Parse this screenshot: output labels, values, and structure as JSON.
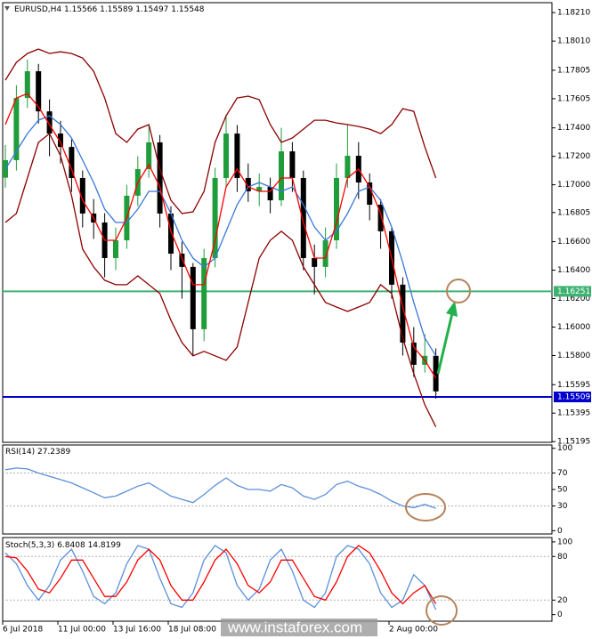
{
  "chart_data": [
    {
      "type": "candlestick",
      "title": "EURUSD,H4",
      "header_values": [
        1.15566,
        1.15589,
        1.15497,
        1.15548
      ],
      "up_color": "#1f9d3a",
      "down_color": "#000000",
      "open": [
        1.1705,
        1.17173,
        1.1761,
        1.17798,
        1.17516,
        1.1736,
        1.17266,
        1.17048,
        1.16798,
        1.16735,
        1.16485,
        1.1661,
        1.16923,
        1.1711,
        1.17298,
        1.16798,
        1.16516,
        1.16423,
        1.15985,
        1.16485,
        1.17048,
        1.1736,
        1.17048,
        1.16954,
        1.16985,
        1.16891,
        1.17235,
        1.17048,
        1.16485,
        1.16423,
        1.1661,
        1.17048,
        1.17204,
        1.17016,
        1.1686,
        1.16673,
        1.16298,
        1.15891,
        1.15735,
        1.15798
      ],
      "high": [
        1.1728,
        1.177,
        1.1788,
        1.1785,
        1.176,
        1.1745,
        1.1732,
        1.171,
        1.169,
        1.168,
        1.167,
        1.17,
        1.172,
        1.1742,
        1.1735,
        1.1685,
        1.166,
        1.1645,
        1.1655,
        1.1712,
        1.1748,
        1.1742,
        1.1715,
        1.1708,
        1.1705,
        1.174,
        1.173,
        1.171,
        1.1658,
        1.167,
        1.1715,
        1.1742,
        1.173,
        1.1708,
        1.169,
        1.167,
        1.1635,
        1.16,
        1.1595,
        1.1585
      ],
      "low": [
        1.1698,
        1.171,
        1.1754,
        1.1743,
        1.172,
        1.1715,
        1.1695,
        1.167,
        1.1662,
        1.1635,
        1.164,
        1.1655,
        1.1685,
        1.1705,
        1.167,
        1.164,
        1.162,
        1.158,
        1.159,
        1.1642,
        1.1699,
        1.1695,
        1.1688,
        1.1685,
        1.168,
        1.1685,
        1.1695,
        1.164,
        1.1623,
        1.1635,
        1.1655,
        1.1698,
        1.169,
        1.1675,
        1.1655,
        1.162,
        1.158,
        1.1565,
        1.1568,
        1.15497
      ],
      "close": [
        1.17173,
        1.1761,
        1.17798,
        1.17516,
        1.1736,
        1.17266,
        1.17048,
        1.16798,
        1.16735,
        1.16485,
        1.1661,
        1.16923,
        1.1711,
        1.17298,
        1.16798,
        1.16516,
        1.16423,
        1.15985,
        1.16485,
        1.17048,
        1.1736,
        1.17048,
        1.16954,
        1.16985,
        1.16891,
        1.17235,
        1.17048,
        1.16485,
        1.16423,
        1.1661,
        1.17048,
        1.17204,
        1.17016,
        1.1686,
        1.16673,
        1.16298,
        1.15891,
        1.15735,
        1.15798,
        1.15548
      ],
      "series": [
        {
          "color": "#8b0000",
          "values": [
            1.17735,
            1.1786,
            1.17923,
            1.17954,
            1.17923,
            1.17935,
            1.17923,
            1.17891,
            1.17798,
            1.1761,
            1.1736,
            1.17298,
            1.17391,
            1.17423,
            1.1711,
            1.16891,
            1.16798,
            1.1681,
            1.16954,
            1.17298,
            1.17485,
            1.1761,
            1.17623,
            1.17598,
            1.17423,
            1.17298,
            1.17329,
            1.17391,
            1.17454,
            1.17454,
            1.17435,
            1.17423,
            1.1741,
            1.17391,
            1.1736,
            1.17423,
            1.17535,
            1.17516,
            1.17266,
            1.17048
          ]
        },
        {
          "color": "#8b0000",
          "values": [
            1.16735,
            1.16798,
            1.17048,
            1.17298,
            1.1736,
            1.17204,
            1.16923,
            1.16548,
            1.16423,
            1.16329,
            1.16298,
            1.16298,
            1.1636,
            1.16298,
            1.16235,
            1.16048,
            1.15891,
            1.15798,
            1.15829,
            1.15798,
            1.15766,
            1.1586,
            1.16173,
            1.16485,
            1.1661,
            1.16673,
            1.1661,
            1.16423,
            1.16298,
            1.16173,
            1.16141,
            1.1611,
            1.16141,
            1.16173,
            1.16298,
            1.16235,
            1.15923,
            1.15673,
            1.15454,
            1.15298
          ]
        },
        {
          "color": "#3a78d8",
          "values": [
            1.1711,
            1.17235,
            1.1736,
            1.17454,
            1.17485,
            1.17423,
            1.17329,
            1.17173,
            1.17016,
            1.16829,
            1.16735,
            1.16735,
            1.16829,
            1.16954,
            1.16954,
            1.16798,
            1.1661,
            1.16485,
            1.16423,
            1.16485,
            1.16673,
            1.1686,
            1.16985,
            1.17016,
            1.16985,
            1.16954,
            1.16985,
            1.1686,
            1.16704,
            1.1661,
            1.16673,
            1.16798,
            1.16954,
            1.16985,
            1.16891,
            1.16704,
            1.16454,
            1.16173,
            1.15923,
            1.15798
          ]
        },
        {
          "color": "#ff0000",
          "values": [
            1.17423,
            1.1761,
            1.17641,
            1.17548,
            1.17423,
            1.17298,
            1.1711,
            1.16891,
            1.16766,
            1.1661,
            1.1661,
            1.16766,
            1.17016,
            1.17141,
            1.16985,
            1.16673,
            1.16485,
            1.16298,
            1.16298,
            1.1661,
            1.16985,
            1.1711,
            1.16985,
            1.16954,
            1.16954,
            1.17048,
            1.17048,
            1.16735,
            1.16485,
            1.16485,
            1.16735,
            1.17048,
            1.1711,
            1.16985,
            1.16798,
            1.16485,
            1.16141,
            1.1586,
            1.15766,
            1.15641
          ]
        }
      ],
      "levels": [
        {
          "value": 1.16251,
          "color": "#3cb371"
        },
        {
          "value": 1.15509,
          "color": "#0000cd"
        }
      ],
      "levels_labeled": true,
      "ylim": [
        1.1519,
        1.1828
      ],
      "yticks": [
        {
          "value": 1.1821,
          "label": "1.18210"
        },
        {
          "value": 1.1801,
          "label": "1.18010"
        },
        {
          "value": 1.17805,
          "label": "1.17805"
        },
        {
          "value": 1.17605,
          "label": "1.17605"
        },
        {
          "value": 1.174,
          "label": "1.17400"
        },
        {
          "value": 1.172,
          "label": "1.17200"
        },
        {
          "value": 1.17,
          "label": "1.17000"
        },
        {
          "value": 1.16805,
          "label": "1.16805"
        },
        {
          "value": 1.166,
          "label": "1.16600"
        },
        {
          "value": 1.164,
          "label": "1.16400"
        },
        {
          "value": 1.162,
          "label": "1.16200"
        },
        {
          "value": 1.16,
          "label": "1.16000"
        },
        {
          "value": 1.158,
          "label": "1.15800"
        },
        {
          "value": 1.15595,
          "label": "1.15595"
        },
        {
          "value": 1.15395,
          "label": "1.15395"
        },
        {
          "value": 1.15195,
          "label": "1.15195"
        }
      ]
    },
    {
      "type": "line",
      "title": "RSI(14)",
      "series": [
        {
          "color": "#5b8fd9",
          "values": [
            74,
            76,
            75,
            70,
            66,
            62,
            58,
            52,
            46,
            40,
            42,
            48,
            54,
            58,
            50,
            42,
            38,
            34,
            44,
            55,
            64,
            55,
            50,
            50,
            48,
            56,
            52,
            42,
            38,
            44,
            56,
            60,
            54,
            50,
            44,
            36,
            30,
            28,
            32,
            27.2389
          ]
        }
      ],
      "levels": [
        {
          "value": 70,
          "color": "#b0b0b0"
        },
        {
          "value": 30,
          "color": "#b0b0b0"
        }
      ],
      "levels_labeled": false,
      "ylim": [
        -4,
        104
      ],
      "yticks": [
        100,
        70,
        50,
        30,
        0
      ]
    },
    {
      "type": "line",
      "title": "Stoch(5,3,3)",
      "series": [
        {
          "color": "#5b8fd9",
          "values": [
            85,
            70,
            40,
            20,
            40,
            75,
            90,
            60,
            25,
            15,
            30,
            70,
            95,
            90,
            50,
            15,
            10,
            30,
            75,
            95,
            85,
            40,
            20,
            35,
            75,
            90,
            60,
            20,
            10,
            30,
            80,
            95,
            90,
            70,
            30,
            10,
            20,
            55,
            40,
            6.8408
          ]
        },
        {
          "color": "#ff0000",
          "values": [
            80,
            78,
            60,
            35,
            30,
            50,
            75,
            75,
            50,
            25,
            25,
            45,
            75,
            90,
            75,
            40,
            20,
            20,
            45,
            75,
            90,
            70,
            40,
            30,
            45,
            75,
            75,
            50,
            25,
            20,
            45,
            80,
            95,
            85,
            60,
            30,
            15,
            30,
            40,
            14.8199
          ]
        }
      ],
      "levels": [
        {
          "value": 80,
          "color": "#b0b0b0"
        },
        {
          "value": 20,
          "color": "#b0b0b0"
        }
      ],
      "levels_labeled": false,
      "ylim": [
        -9,
        106
      ],
      "yticks": [
        100,
        80,
        20,
        0
      ],
      "categories": [
        "6 Jul 2018",
        null,
        null,
        null,
        null,
        "11 Jul 00:00",
        null,
        null,
        null,
        null,
        "13 Jul 16:00",
        null,
        null,
        null,
        null,
        "18 Jul 08:00",
        null,
        null,
        null,
        null,
        null,
        null,
        null,
        null,
        null,
        null,
        null,
        null,
        null,
        null,
        null,
        null,
        null,
        null,
        null,
        "2 Aug 00:00",
        null,
        null,
        null,
        null
      ]
    }
  ],
  "watermark": "www.instaforex.com"
}
